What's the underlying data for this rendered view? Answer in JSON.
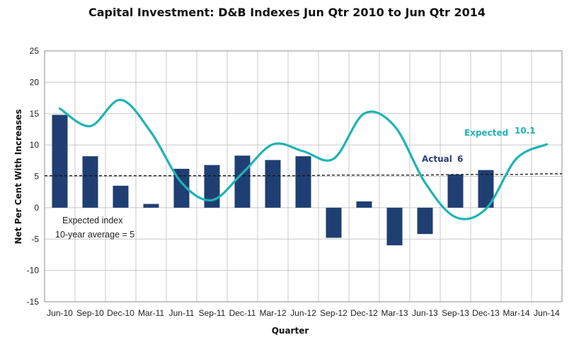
{
  "chart_data": {
    "type": "bar",
    "title": "Capital Investment: D&B Indexes Jun Qtr 2010 to Jun Qtr 2014",
    "xlabel": "Quarter",
    "ylabel": "Net Per Cent With Increases",
    "ylim": [
      -15,
      25
    ],
    "yticks": [
      25,
      20,
      15,
      10,
      5,
      0,
      -5,
      -10,
      -15
    ],
    "grid": true,
    "categories": [
      "Jun-10",
      "Sep-10",
      "Dec-10",
      "Mar-11",
      "Jun-11",
      "Sep-11",
      "Dec-11",
      "Mar-12",
      "Jun-12",
      "Sep-12",
      "Dec-12",
      "Mar-13",
      "Jun-13",
      "Sep-13",
      "Dec-13",
      "Mar-14",
      "Jun-14"
    ],
    "series": [
      {
        "name": "Actual",
        "type": "bar",
        "color": "#1f3f73",
        "values": [
          14.8,
          8.2,
          3.5,
          0.6,
          6.2,
          6.8,
          8.3,
          7.6,
          8.2,
          -4.8,
          1.0,
          -6.0,
          -4.2,
          5.3,
          6.0,
          null,
          null
        ]
      },
      {
        "name": "Expected",
        "type": "line",
        "color": "#1fb3b3",
        "values": [
          15.8,
          13.0,
          17.2,
          12.0,
          4.0,
          1.2,
          5.5,
          10.1,
          9.0,
          7.8,
          15.0,
          13.0,
          4.0,
          -1.5,
          -0.2,
          7.8,
          10.1
        ]
      },
      {
        "name": "10-year average",
        "type": "line",
        "style": "dashed",
        "color": "#111111",
        "values": [
          5.1,
          5.1,
          5.1,
          5.1,
          5.1,
          5.1,
          5.1,
          5.1,
          5.1,
          5.2,
          5.2,
          5.2,
          5.2,
          5.3,
          5.3,
          5.3,
          5.4
        ]
      }
    ],
    "annotations": {
      "expected_index_line1": "Expected index",
      "expected_index_line2": "10-year average = 5",
      "actual_label": "Actual",
      "actual_value": "6",
      "expected_label": "Expected",
      "expected_value": "10.1"
    }
  }
}
